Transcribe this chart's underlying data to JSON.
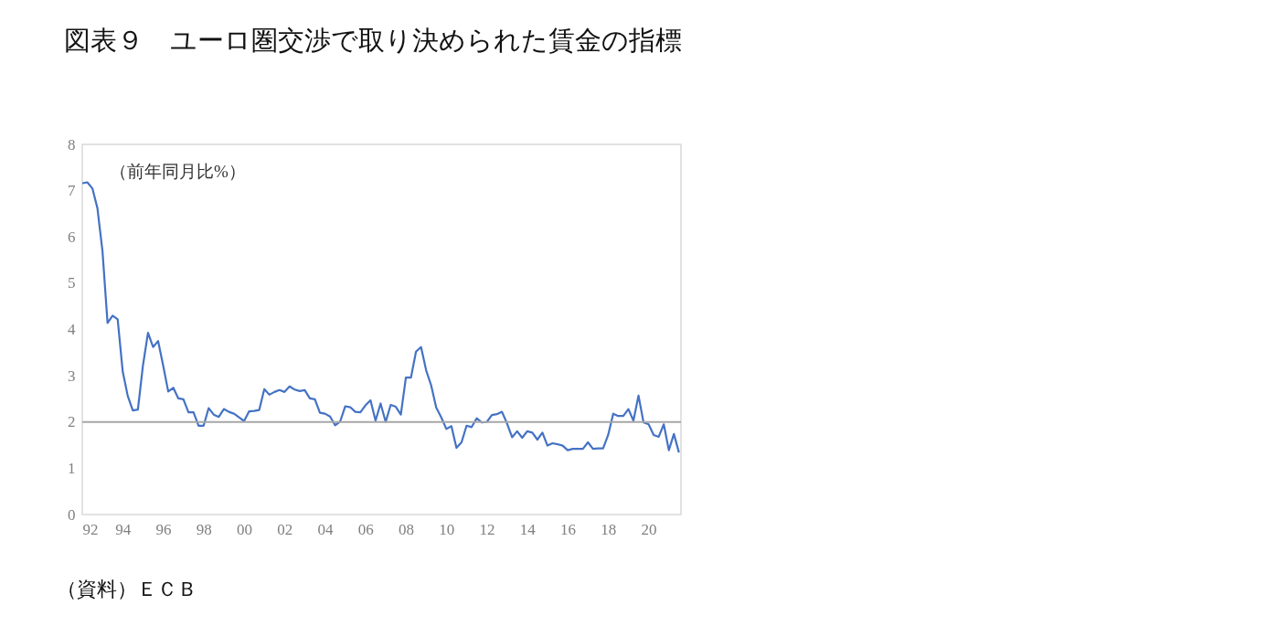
{
  "chart_data": {
    "type": "line",
    "title": "図表９　ユーロ圏交渉で取り決められた賃金の指標",
    "ylabel": "（前年同月比%）",
    "annotations": [
      "（資料）ＥＣＢ"
    ],
    "x": [
      1992,
      1992.25,
      1992.5,
      1992.75,
      1993,
      1993.25,
      1993.5,
      1993.75,
      1994,
      1994.25,
      1994.5,
      1994.75,
      1995,
      1995.25,
      1995.5,
      1995.75,
      1996,
      1996.25,
      1996.5,
      1996.75,
      1997,
      1997.25,
      1997.5,
      1997.75,
      1998,
      1998.25,
      1998.5,
      1998.75,
      1999,
      1999.25,
      1999.5,
      1999.75,
      2000,
      2000.25,
      2000.5,
      2000.75,
      2001,
      2001.25,
      2001.5,
      2001.75,
      2002,
      2002.25,
      2002.5,
      2002.75,
      2003,
      2003.25,
      2003.5,
      2003.75,
      2004,
      2004.25,
      2004.5,
      2004.75,
      2005,
      2005.25,
      2005.5,
      2005.75,
      2006,
      2006.25,
      2006.5,
      2006.75,
      2007,
      2007.25,
      2007.5,
      2007.75,
      2008,
      2008.25,
      2008.5,
      2008.75,
      2009,
      2009.25,
      2009.5,
      2009.75,
      2010,
      2010.25,
      2010.5,
      2010.75,
      2011,
      2011.25,
      2011.5,
      2011.75,
      2012,
      2012.25,
      2012.5,
      2012.75,
      2013,
      2013.25,
      2013.5,
      2013.75,
      2014,
      2014.25,
      2014.5,
      2014.75,
      2015,
      2015.25,
      2015.5,
      2015.75,
      2016,
      2016.25,
      2016.5,
      2016.75,
      2017,
      2017.25,
      2017.5,
      2017.75,
      2018,
      2018.25,
      2018.5,
      2018.75,
      2019,
      2019.25,
      2019.5,
      2019.75,
      2020,
      2020.25,
      2020.5,
      2020.75,
      2021,
      2021.25,
      2021.5
    ],
    "series": [
      {
        "color": "#4472c4",
        "values": [
          7.16,
          7.18,
          7.05,
          6.62,
          5.69,
          4.14,
          4.3,
          4.22,
          3.09,
          2.56,
          2.25,
          2.27,
          3.22,
          3.93,
          3.62,
          3.75,
          3.22,
          2.66,
          2.74,
          2.51,
          2.49,
          2.21,
          2.21,
          1.92,
          1.92,
          2.3,
          2.16,
          2.11,
          2.28,
          2.22,
          2.18,
          2.1,
          2.02,
          2.23,
          2.24,
          2.26,
          2.71,
          2.59,
          2.65,
          2.69,
          2.65,
          2.77,
          2.7,
          2.67,
          2.69,
          2.51,
          2.49,
          2.2,
          2.18,
          2.12,
          1.93,
          2.01,
          2.34,
          2.32,
          2.22,
          2.21,
          2.36,
          2.47,
          2.03,
          2.4,
          2.0,
          2.37,
          2.33,
          2.16,
          2.96,
          2.96,
          3.52,
          3.62,
          3.12,
          2.79,
          2.31,
          2.1,
          1.85,
          1.91,
          1.44,
          1.56,
          1.92,
          1.89,
          2.08,
          1.99,
          2.0,
          2.15,
          2.17,
          2.22,
          1.97,
          1.67,
          1.8,
          1.66,
          1.8,
          1.77,
          1.62,
          1.77,
          1.49,
          1.54,
          1.52,
          1.49,
          1.39,
          1.42,
          1.42,
          1.42,
          1.56,
          1.42,
          1.43,
          1.43,
          1.72,
          2.18,
          2.13,
          2.13,
          2.28,
          2.03,
          2.57,
          1.99,
          1.95,
          1.72,
          1.68,
          1.95,
          1.39,
          1.74,
          1.34
        ]
      }
    ],
    "xlim": [
      1992,
      2021.6
    ],
    "xticks": [
      {
        "value": 1992,
        "label": "92"
      },
      {
        "value": 1994,
        "label": "94"
      },
      {
        "value": 1996,
        "label": "96"
      },
      {
        "value": 1998,
        "label": "98"
      },
      {
        "value": 2000,
        "label": "00"
      },
      {
        "value": 2002,
        "label": "02"
      },
      {
        "value": 2004,
        "label": "04"
      },
      {
        "value": 2006,
        "label": "06"
      },
      {
        "value": 2008,
        "label": "08"
      },
      {
        "value": 2010,
        "label": "10"
      },
      {
        "value": 2012,
        "label": "12"
      },
      {
        "value": 2014,
        "label": "14"
      },
      {
        "value": 2016,
        "label": "16"
      },
      {
        "value": 2018,
        "label": "18"
      },
      {
        "value": 2020,
        "label": "20"
      }
    ],
    "ylim": [
      0,
      8
    ],
    "yticks": [
      0,
      1,
      2,
      3,
      4,
      5,
      6,
      7,
      8
    ],
    "ref_lines": [
      {
        "axis": "y",
        "value": 2,
        "color": "#a6a6a6"
      }
    ],
    "marker": "none",
    "line_style": "solid"
  }
}
